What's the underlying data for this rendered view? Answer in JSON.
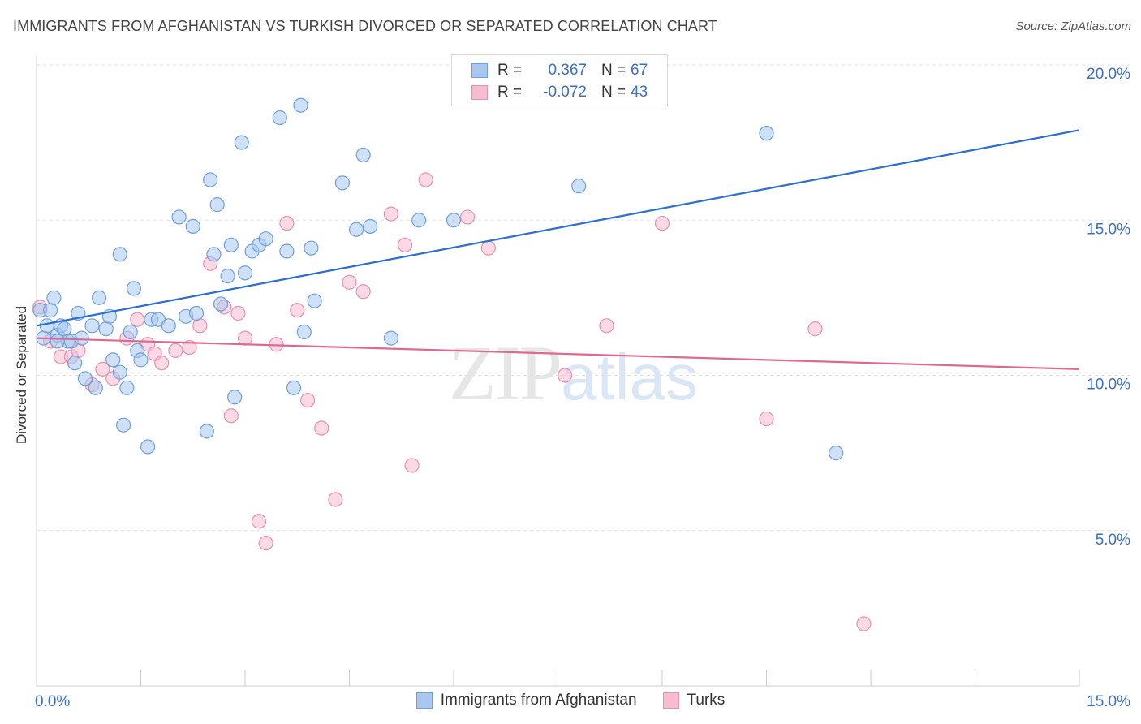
{
  "title": "IMMIGRANTS FROM AFGHANISTAN VS TURKISH DIVORCED OR SEPARATED CORRELATION CHART",
  "source": "Source: ZipAtlas.com",
  "watermark": {
    "zip": "ZIP",
    "atlas": "atlas"
  },
  "legend": {
    "rows": [
      {
        "r_label": "R =",
        "r_value": "0.367",
        "n_label": "N =",
        "n_value": "67",
        "color": "#a8c8f0",
        "border": "#6f9fdf"
      },
      {
        "r_label": "R =",
        "r_value": "-0.072",
        "n_label": "N =",
        "n_value": "43",
        "color": "#f8bcd0",
        "border": "#e890b0"
      }
    ]
  },
  "bottom_legend": {
    "series1": "Immigrants from Afghanistan",
    "series2": "Turks"
  },
  "colors": {
    "blue_fill": "#a8c8f0",
    "blue_stroke": "#6f9fdf",
    "blue_line": "#2a6fd0",
    "pink_fill": "#f8bcd0",
    "pink_stroke": "#e890b0",
    "pink_line": "#e0688f",
    "tick_label": "#3a6fc8",
    "grid": "#e2e2e2"
  },
  "chart_data": {
    "type": "scatter",
    "title": "IMMIGRANTS FROM AFGHANISTAN VS TURKISH DIVORCED OR SEPARATED CORRELATION CHART",
    "xlabel": "",
    "ylabel": "Divorced or Separated",
    "xlim": [
      0,
      15
    ],
    "ylim": [
      0,
      20
    ],
    "x_tick_labels": [
      "0.0%",
      "15.0%"
    ],
    "y_ticks": [
      5,
      10,
      15,
      20
    ],
    "y_tick_labels": [
      "5.0%",
      "10.0%",
      "15.0%",
      "20.0%"
    ],
    "grid": true,
    "legend_placement": "top-center",
    "series": [
      {
        "name": "Immigrants from Afghanistan",
        "trend": {
          "x": [
            0,
            15
          ],
          "y": [
            11.6,
            17.9
          ]
        },
        "points": [
          [
            0.05,
            12.1
          ],
          [
            0.1,
            11.2
          ],
          [
            0.15,
            11.6
          ],
          [
            0.2,
            12.1
          ],
          [
            0.25,
            12.5
          ],
          [
            0.3,
            11.3
          ],
          [
            0.35,
            11.6
          ],
          [
            0.4,
            11.5
          ],
          [
            0.45,
            11.1
          ],
          [
            0.5,
            11.1
          ],
          [
            0.55,
            10.4
          ],
          [
            0.6,
            12.0
          ],
          [
            0.65,
            11.2
          ],
          [
            0.7,
            9.9
          ],
          [
            0.8,
            11.6
          ],
          [
            0.85,
            9.6
          ],
          [
            0.9,
            12.5
          ],
          [
            1.0,
            11.5
          ],
          [
            1.05,
            11.9
          ],
          [
            1.1,
            10.5
          ],
          [
            1.2,
            10.1
          ],
          [
            1.25,
            8.4
          ],
          [
            1.3,
            9.6
          ],
          [
            1.35,
            11.4
          ],
          [
            1.4,
            12.8
          ],
          [
            1.45,
            10.8
          ],
          [
            1.5,
            10.5
          ],
          [
            1.6,
            7.7
          ],
          [
            1.65,
            11.8
          ],
          [
            1.75,
            11.8
          ],
          [
            1.9,
            11.6
          ],
          [
            2.05,
            15.1
          ],
          [
            2.15,
            11.9
          ],
          [
            2.25,
            14.8
          ],
          [
            2.3,
            12.0
          ],
          [
            2.45,
            8.2
          ],
          [
            2.5,
            16.3
          ],
          [
            2.55,
            13.9
          ],
          [
            2.6,
            15.5
          ],
          [
            2.65,
            12.3
          ],
          [
            2.75,
            13.2
          ],
          [
            2.8,
            14.2
          ],
          [
            2.85,
            9.3
          ],
          [
            2.95,
            17.5
          ],
          [
            3.0,
            13.3
          ],
          [
            3.1,
            14.0
          ],
          [
            3.2,
            14.2
          ],
          [
            3.3,
            14.4
          ],
          [
            3.5,
            18.3
          ],
          [
            3.6,
            14.0
          ],
          [
            3.7,
            9.6
          ],
          [
            3.8,
            18.7
          ],
          [
            3.85,
            11.4
          ],
          [
            3.95,
            14.1
          ],
          [
            4.0,
            12.4
          ],
          [
            4.4,
            16.2
          ],
          [
            4.6,
            14.7
          ],
          [
            4.8,
            14.8
          ],
          [
            4.7,
            17.1
          ],
          [
            5.1,
            11.2
          ],
          [
            5.5,
            15.0
          ],
          [
            6.0,
            15.0
          ],
          [
            1.2,
            13.9
          ],
          [
            7.8,
            16.1
          ],
          [
            10.5,
            17.8
          ],
          [
            11.5,
            7.5
          ],
          [
            0.3,
            11.1
          ]
        ]
      },
      {
        "name": "Turks",
        "trend": {
          "x": [
            0,
            15
          ],
          "y": [
            11.2,
            10.2
          ]
        },
        "points": [
          [
            0.05,
            12.2
          ],
          [
            0.2,
            11.1
          ],
          [
            0.35,
            10.6
          ],
          [
            0.5,
            10.6
          ],
          [
            0.6,
            10.8
          ],
          [
            0.8,
            9.7
          ],
          [
            0.95,
            10.2
          ],
          [
            1.1,
            9.9
          ],
          [
            1.3,
            11.2
          ],
          [
            1.45,
            11.8
          ],
          [
            1.6,
            11.0
          ],
          [
            1.7,
            10.7
          ],
          [
            1.8,
            10.4
          ],
          [
            2.0,
            10.8
          ],
          [
            2.2,
            10.9
          ],
          [
            2.35,
            11.6
          ],
          [
            2.5,
            13.6
          ],
          [
            2.7,
            12.2
          ],
          [
            2.8,
            8.7
          ],
          [
            2.9,
            12.0
          ],
          [
            3.0,
            11.2
          ],
          [
            3.2,
            5.3
          ],
          [
            3.3,
            4.6
          ],
          [
            3.45,
            11.0
          ],
          [
            3.6,
            14.9
          ],
          [
            3.75,
            12.1
          ],
          [
            3.9,
            9.2
          ],
          [
            4.1,
            8.3
          ],
          [
            4.3,
            6.0
          ],
          [
            4.5,
            13.0
          ],
          [
            4.7,
            12.7
          ],
          [
            5.1,
            15.2
          ],
          [
            5.3,
            14.2
          ],
          [
            5.4,
            7.1
          ],
          [
            5.6,
            16.3
          ],
          [
            6.2,
            15.1
          ],
          [
            6.5,
            14.1
          ],
          [
            7.6,
            10.0
          ],
          [
            8.2,
            11.6
          ],
          [
            9.0,
            14.9
          ],
          [
            10.5,
            8.6
          ],
          [
            11.2,
            11.5
          ],
          [
            11.9,
            2.0
          ]
        ]
      }
    ]
  }
}
